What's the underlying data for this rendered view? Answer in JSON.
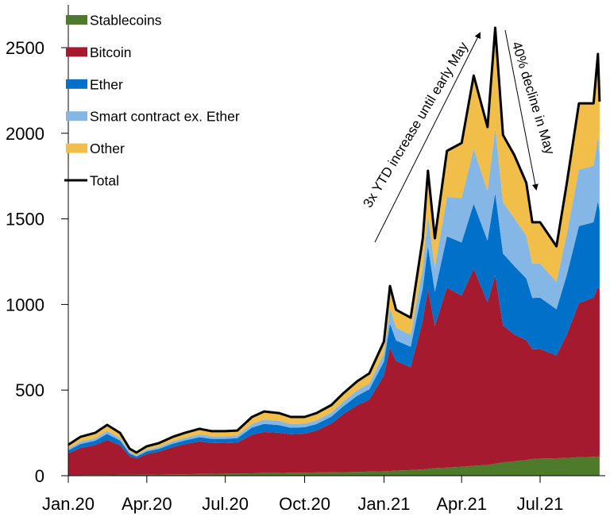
{
  "chart_data": {
    "type": "area",
    "stacked": true,
    "title": "",
    "xlabel": "",
    "ylabel": "",
    "ylim": [
      0,
      2650
    ],
    "yticks": [
      0,
      500,
      1000,
      1500,
      2000,
      2500
    ],
    "xticks": [
      {
        "date": "2020-01-01",
        "label": "Jan.20"
      },
      {
        "date": "2020-04-01",
        "label": "Apr.20"
      },
      {
        "date": "2020-07-01",
        "label": "Jul.20"
      },
      {
        "date": "2020-10-01",
        "label": "Oct.20"
      },
      {
        "date": "2021-01-01",
        "label": "Jan.21"
      },
      {
        "date": "2021-04-01",
        "label": "Apr.21"
      },
      {
        "date": "2021-07-01",
        "label": "Jul.21"
      }
    ],
    "grid": false,
    "legend_placement": "top-left",
    "x": [
      "2020-01-01",
      "2020-01-15",
      "2020-02-01",
      "2020-02-15",
      "2020-03-01",
      "2020-03-12",
      "2020-03-20",
      "2020-04-01",
      "2020-04-15",
      "2020-05-01",
      "2020-05-15",
      "2020-06-01",
      "2020-06-15",
      "2020-07-01",
      "2020-07-15",
      "2020-08-01",
      "2020-08-15",
      "2020-09-01",
      "2020-09-15",
      "2020-10-01",
      "2020-10-15",
      "2020-11-01",
      "2020-11-15",
      "2020-12-01",
      "2020-12-15",
      "2021-01-01",
      "2021-01-08",
      "2021-01-15",
      "2021-02-01",
      "2021-02-15",
      "2021-02-21",
      "2021-03-01",
      "2021-03-15",
      "2021-04-01",
      "2021-04-15",
      "2021-05-01",
      "2021-05-10",
      "2021-05-19",
      "2021-06-01",
      "2021-06-15",
      "2021-06-22",
      "2021-07-01",
      "2021-07-20",
      "2021-08-01",
      "2021-08-15",
      "2021-09-01",
      "2021-09-06",
      "2021-09-08"
    ],
    "series": [
      {
        "name": "Stablecoins",
        "color": "#4e7a2c",
        "values": [
          3,
          3,
          4,
          4,
          5,
          5,
          5,
          6,
          7,
          8,
          9,
          10,
          11,
          12,
          13,
          14,
          15,
          16,
          17,
          18,
          19,
          20,
          21,
          22,
          24,
          26,
          28,
          30,
          33,
          37,
          40,
          44,
          48,
          52,
          58,
          63,
          70,
          78,
          85,
          92,
          98,
          100,
          102,
          104,
          108,
          110,
          112,
          113
        ]
      },
      {
        "name": "Bitcoin",
        "color": "#a51a2f",
        "values": [
          127,
          159,
          175,
          205,
          172,
          110,
          95,
          121,
          133,
          159,
          175,
          190,
          180,
          178,
          180,
          225,
          240,
          235,
          225,
          228,
          245,
          285,
          340,
          390,
          420,
          560,
          720,
          640,
          600,
          870,
          1050,
          830,
          1050,
          1000,
          1150,
          950,
          1100,
          800,
          740,
          700,
          640,
          640,
          600,
          720,
          900,
          930,
          990,
          975
        ]
      },
      {
        "name": "Ether",
        "color": "#0070c8",
        "values": [
          18,
          23,
          25,
          35,
          28,
          15,
          12,
          15,
          17,
          20,
          22,
          25,
          24,
          25,
          26,
          42,
          48,
          45,
          38,
          37,
          38,
          40,
          45,
          55,
          60,
          80,
          140,
          120,
          120,
          190,
          250,
          200,
          300,
          310,
          380,
          360,
          480,
          420,
          400,
          360,
          300,
          300,
          270,
          350,
          450,
          440,
          500,
          460
        ]
      },
      {
        "name": "Smart contract ex. Ether",
        "color": "#84b7e6",
        "values": [
          11,
          14,
          15,
          18,
          15,
          10,
          8,
          10,
          11,
          14,
          15,
          17,
          16,
          16,
          16,
          22,
          25,
          25,
          22,
          21,
          22,
          24,
          28,
          32,
          36,
          48,
          90,
          75,
          70,
          120,
          180,
          140,
          230,
          260,
          320,
          290,
          380,
          300,
          280,
          250,
          200,
          200,
          160,
          240,
          330,
          330,
          380,
          330
        ]
      },
      {
        "name": "Other",
        "color": "#f2be4a",
        "values": [
          22,
          28,
          31,
          35,
          30,
          18,
          15,
          20,
          22,
          26,
          29,
          32,
          29,
          29,
          29,
          40,
          47,
          45,
          41,
          39,
          42,
          44,
          48,
          53,
          58,
          70,
          130,
          104,
          100,
          170,
          261,
          173,
          269,
          321,
          429,
          373,
          586,
          392,
          369,
          309,
          242,
          240,
          208,
          297,
          387,
          365,
          481,
          307
        ]
      }
    ],
    "total": {
      "name": "Total",
      "color": "#000000",
      "values": [
        181,
        227,
        250,
        297,
        250,
        158,
        135,
        172,
        190,
        227,
        250,
        274,
        260,
        260,
        264,
        343,
        375,
        366,
        343,
        343,
        366,
        413,
        482,
        552,
        598,
        784,
        1108,
        969,
        923,
        1387,
        1781,
        1387,
        1897,
        1943,
        2337,
        2036,
        2616,
        1990,
        1874,
        1711,
        1480,
        1480,
        1340,
        1711,
        2175,
        2175,
        2463,
        2185
      ]
    },
    "annotations": [
      {
        "text": "3x YTD increase until early May",
        "arrow": "up-right"
      },
      {
        "text": "40% decline in May",
        "arrow": "down"
      }
    ]
  }
}
